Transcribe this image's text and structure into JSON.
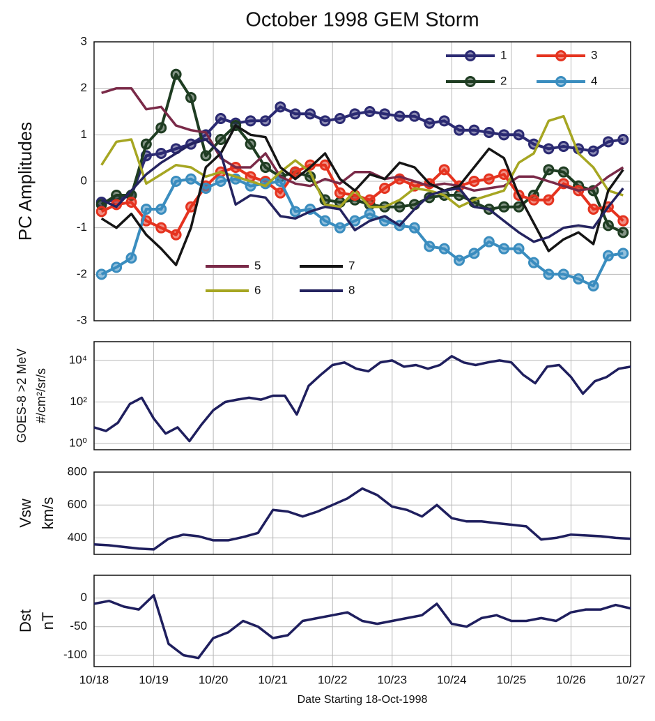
{
  "chart_data": [
    {
      "type": "line",
      "title": "October 1998 GEM Storm",
      "ylabel": "PC Amplitudes",
      "x": [
        0.125,
        0.375,
        0.625,
        0.875,
        1.125,
        1.375,
        1.625,
        1.875,
        2.125,
        2.375,
        2.625,
        2.875,
        3.125,
        3.375,
        3.625,
        3.875,
        4.125,
        4.375,
        4.625,
        4.875,
        5.125,
        5.375,
        5.625,
        5.875,
        6.125,
        6.375,
        6.625,
        6.875,
        7.125,
        7.375,
        7.625,
        7.875,
        8.125,
        8.375,
        8.625,
        8.875
      ],
      "xlim": [
        0,
        9
      ],
      "xticks": [
        0,
        1,
        2,
        3,
        4,
        5,
        6,
        7,
        8,
        9
      ],
      "ylim": [
        -3,
        3
      ],
      "yticks": [
        -3,
        -2,
        -1,
        0,
        1,
        2,
        3
      ],
      "grid": true,
      "series": [
        {
          "name": "1",
          "color": "#2b2a72",
          "marker": "o",
          "values": [
            -0.45,
            -0.4,
            -0.3,
            0.55,
            0.6,
            0.7,
            0.8,
            1.0,
            1.35,
            1.25,
            1.3,
            1.3,
            1.6,
            1.45,
            1.45,
            1.3,
            1.35,
            1.45,
            1.5,
            1.45,
            1.4,
            1.4,
            1.25,
            1.3,
            1.1,
            1.1,
            1.05,
            1.0,
            1.0,
            0.8,
            0.7,
            0.75,
            0.7,
            0.65,
            0.85,
            0.9
          ]
        },
        {
          "name": "2",
          "color": "#1f3d22",
          "marker": "o",
          "values": [
            -0.5,
            -0.3,
            -0.3,
            0.8,
            1.15,
            2.3,
            1.8,
            0.55,
            0.9,
            1.2,
            0.8,
            0.3,
            0.1,
            0.2,
            0.1,
            -0.4,
            -0.45,
            -0.4,
            -0.5,
            -0.55,
            -0.55,
            -0.5,
            -0.35,
            -0.3,
            -0.3,
            -0.45,
            -0.6,
            -0.55,
            -0.55,
            -0.3,
            0.25,
            0.2,
            -0.1,
            -0.2,
            -0.95,
            -1.1
          ]
        },
        {
          "name": "3",
          "color": "#e5331f",
          "marker": "o",
          "values": [
            -0.65,
            -0.5,
            -0.45,
            -0.85,
            -1.0,
            -1.15,
            -0.55,
            -0.1,
            0.2,
            0.3,
            0.1,
            0.0,
            -0.25,
            0.2,
            0.35,
            0.35,
            -0.25,
            -0.3,
            -0.4,
            -0.15,
            0.05,
            -0.1,
            -0.05,
            0.25,
            -0.1,
            0.0,
            0.05,
            0.15,
            -0.3,
            -0.4,
            -0.4,
            -0.05,
            -0.2,
            -0.6,
            -0.55,
            -0.85
          ]
        },
        {
          "name": "4",
          "color": "#3a8dbf",
          "marker": "o",
          "values": [
            -2.0,
            -1.85,
            -1.65,
            -0.6,
            -0.6,
            0.0,
            0.05,
            -0.15,
            0.0,
            0.05,
            -0.1,
            -0.05,
            0.0,
            -0.65,
            -0.6,
            -0.85,
            -1.0,
            -0.85,
            -0.7,
            -0.85,
            -0.95,
            -1.0,
            -1.4,
            -1.45,
            -1.7,
            -1.55,
            -1.3,
            -1.45,
            -1.45,
            -1.75,
            -2.0,
            -2.0,
            -2.1,
            -2.25,
            -1.6,
            -1.55
          ]
        },
        {
          "name": "5",
          "color": "#7a2a48",
          "values": [
            1.9,
            2.0,
            2.0,
            1.55,
            1.6,
            1.2,
            1.1,
            1.05,
            0.5,
            0.3,
            0.3,
            0.6,
            0.1,
            -0.05,
            -0.1,
            0.05,
            -0.05,
            0.2,
            0.2,
            0.05,
            0.1,
            0.0,
            -0.1,
            -0.05,
            -0.1,
            -0.2,
            -0.15,
            -0.1,
            0.1,
            0.1,
            0.0,
            -0.1,
            -0.2,
            -0.15,
            0.1,
            0.3
          ]
        },
        {
          "name": "6",
          "color": "#a6a622",
          "values": [
            0.35,
            0.85,
            0.9,
            -0.05,
            0.15,
            0.35,
            0.3,
            0.1,
            0.2,
            0.1,
            0.0,
            -0.1,
            0.2,
            0.45,
            0.2,
            -0.5,
            -0.55,
            -0.2,
            -0.55,
            -0.55,
            -0.4,
            -0.15,
            -0.2,
            -0.3,
            -0.55,
            -0.4,
            -0.3,
            -0.2,
            0.4,
            0.6,
            1.3,
            1.4,
            0.6,
            0.3,
            -0.2,
            -0.3
          ]
        },
        {
          "name": "7",
          "color": "#151515",
          "values": [
            -0.8,
            -1.0,
            -0.7,
            -1.15,
            -1.45,
            -1.8,
            -1.0,
            0.3,
            0.6,
            1.2,
            1.0,
            0.95,
            0.3,
            0.05,
            0.3,
            0.6,
            0.05,
            -0.2,
            0.15,
            0.05,
            0.4,
            0.3,
            -0.05,
            -0.2,
            -0.1,
            0.3,
            0.7,
            0.5,
            -0.3,
            -0.9,
            -1.5,
            -1.25,
            -1.1,
            -1.35,
            -0.2,
            0.25
          ]
        },
        {
          "name": "8",
          "color": "#24235f",
          "values": [
            -0.4,
            -0.55,
            -0.2,
            0.15,
            0.4,
            0.6,
            0.8,
            0.9,
            0.6,
            -0.5,
            -0.3,
            -0.35,
            -0.75,
            -0.8,
            -0.65,
            -0.55,
            -0.6,
            -1.05,
            -0.85,
            -0.75,
            -0.95,
            -0.6,
            -0.3,
            -0.2,
            -0.15,
            -0.55,
            -0.6,
            -0.85,
            -1.1,
            -1.3,
            -1.2,
            -1.0,
            -0.95,
            -1.0,
            -0.55,
            -0.15
          ]
        }
      ]
    },
    {
      "type": "line",
      "ylabel": [
        "GOES-8 >2 MeV",
        "#/cm²/sr/s"
      ],
      "yscale": "log",
      "x": [
        0,
        0.2,
        0.4,
        0.6,
        0.8,
        1.0,
        1.2,
        1.4,
        1.6,
        1.8,
        2.0,
        2.2,
        2.4,
        2.6,
        2.8,
        3.0,
        3.2,
        3.4,
        3.6,
        3.8,
        4.0,
        4.2,
        4.4,
        4.6,
        4.8,
        5.0,
        5.2,
        5.4,
        5.6,
        5.8,
        6.0,
        6.2,
        6.4,
        6.6,
        6.8,
        7.0,
        7.2,
        7.4,
        7.6,
        7.8,
        8.0,
        8.2,
        8.4,
        8.6,
        8.8,
        9.0
      ],
      "xlim": [
        0,
        9
      ],
      "xticks": [
        0,
        1,
        2,
        3,
        4,
        5,
        6,
        7,
        8,
        9
      ],
      "ylim": [
        0.5,
        80000
      ],
      "yticks": [
        {
          "value": 1,
          "label": "10⁰"
        },
        {
          "value": 100,
          "label": "10²"
        },
        {
          "value": 10000,
          "label": "10⁴"
        }
      ],
      "grid": true,
      "series": [
        {
          "color": "#1f1f5e",
          "values": [
            6,
            4,
            10,
            80,
            160,
            16,
            3,
            6,
            1.3,
            8,
            40,
            100,
            130,
            160,
            130,
            200,
            200,
            25,
            600,
            2000,
            6000,
            8000,
            4000,
            3000,
            8000,
            10000,
            5000,
            6000,
            4000,
            6000,
            16000,
            8000,
            6000,
            8000,
            10000,
            8000,
            2000,
            800,
            5000,
            6000,
            1600,
            250,
            1000,
            1600,
            4000,
            5000
          ]
        }
      ]
    },
    {
      "type": "line",
      "ylabel": [
        "Vsw",
        "km/s"
      ],
      "x": [
        0,
        0.25,
        0.5,
        0.75,
        1,
        1.25,
        1.5,
        1.75,
        2,
        2.25,
        2.5,
        2.75,
        3,
        3.25,
        3.5,
        3.75,
        4,
        4.25,
        4.5,
        4.75,
        5,
        5.25,
        5.5,
        5.75,
        6,
        6.25,
        6.5,
        6.75,
        7,
        7.25,
        7.5,
        7.75,
        8,
        8.25,
        8.5,
        8.75,
        9
      ],
      "xlim": [
        0,
        9
      ],
      "xticks": [
        0,
        1,
        2,
        3,
        4,
        5,
        6,
        7,
        8,
        9
      ],
      "ylim": [
        300,
        800
      ],
      "yticks": [
        400,
        600,
        800
      ],
      "grid": true,
      "series": [
        {
          "color": "#1f1f5e",
          "values": [
            360,
            355,
            345,
            335,
            330,
            395,
            420,
            410,
            385,
            385,
            405,
            430,
            570,
            560,
            530,
            560,
            600,
            640,
            700,
            660,
            590,
            570,
            530,
            600,
            520,
            500,
            500,
            490,
            480,
            470,
            390,
            400,
            420,
            415,
            410,
            400,
            395
          ]
        }
      ]
    },
    {
      "type": "line",
      "ylabel": [
        "Dst",
        "nT"
      ],
      "xlabel": "Date Starting 18-Oct-1998",
      "x": [
        0,
        0.25,
        0.5,
        0.75,
        1,
        1.25,
        1.5,
        1.75,
        2,
        2.25,
        2.5,
        2.75,
        3,
        3.25,
        3.5,
        3.75,
        4,
        4.25,
        4.5,
        4.75,
        5,
        5.25,
        5.5,
        5.75,
        6,
        6.25,
        6.5,
        6.75,
        7,
        7.25,
        7.5,
        7.75,
        8,
        8.25,
        8.5,
        8.75,
        9
      ],
      "xlim": [
        0,
        9
      ],
      "xticks": [
        {
          "value": 0,
          "label": "10/18"
        },
        {
          "value": 1,
          "label": "10/19"
        },
        {
          "value": 2,
          "label": "10/20"
        },
        {
          "value": 3,
          "label": "10/21"
        },
        {
          "value": 4,
          "label": "10/22"
        },
        {
          "value": 5,
          "label": "10/23"
        },
        {
          "value": 6,
          "label": "10/24"
        },
        {
          "value": 7,
          "label": "10/25"
        },
        {
          "value": 8,
          "label": "10/26"
        },
        {
          "value": 9,
          "label": "10/27"
        }
      ],
      "ylim": [
        -120,
        40
      ],
      "yticks": [
        -100,
        -50,
        0
      ],
      "grid": true,
      "series": [
        {
          "color": "#1f1f5e",
          "values": [
            -10,
            -5,
            -15,
            -20,
            5,
            -80,
            -100,
            -105,
            -70,
            -60,
            -40,
            -50,
            -70,
            -65,
            -40,
            -35,
            -30,
            -25,
            -40,
            -45,
            -40,
            -35,
            -30,
            -10,
            -45,
            -50,
            -35,
            -30,
            -40,
            -40,
            -35,
            -40,
            -25,
            -20,
            -20,
            -12,
            -18
          ]
        }
      ]
    }
  ]
}
